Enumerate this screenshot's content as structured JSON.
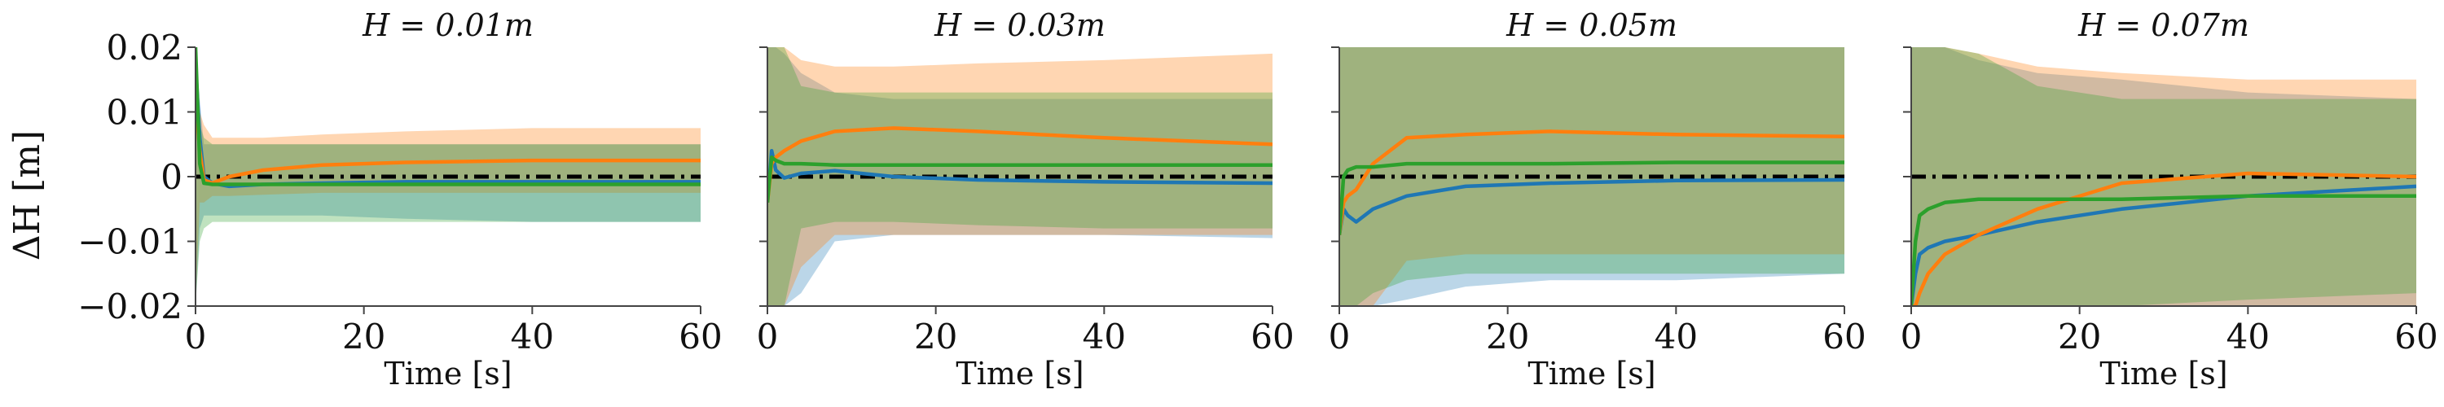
{
  "figure": {
    "ylabel": "ΔH [m]",
    "xlabel": "Time [s]",
    "yticks": [
      "0.02",
      "0.01",
      "0",
      "−0.01",
      "−0.02"
    ],
    "xticks": [
      "0",
      "20",
      "40",
      "60"
    ]
  },
  "colors": {
    "blue": "#1f77b4",
    "orange": "#ff7f0e",
    "green": "#2ca02c",
    "reference": "#000000"
  },
  "chart_data": [
    {
      "type": "line",
      "title": "H = 0.01m",
      "xlabel": "Time [s]",
      "ylabel": "ΔH [m]",
      "xlim": [
        0,
        60
      ],
      "ylim": [
        -0.02,
        0.02
      ],
      "series": [
        {
          "color": "blue",
          "x": [
            0,
            0.5,
            1,
            2,
            4,
            8,
            15,
            25,
            40,
            60
          ],
          "y": [
            0.017,
            0.006,
            0.0,
            -0.001,
            -0.0015,
            -0.0012,
            -0.001,
            -0.0008,
            -0.0008,
            -0.0008
          ],
          "band_lo": [
            -0.02,
            -0.008,
            -0.006,
            -0.006,
            -0.006,
            -0.006,
            -0.006,
            -0.0065,
            -0.007,
            -0.007
          ],
          "band_hi": [
            0.02,
            0.012,
            0.005,
            0.005,
            0.005,
            0.005,
            0.005,
            0.005,
            0.005,
            0.005
          ]
        },
        {
          "color": "orange",
          "x": [
            0,
            0.5,
            1,
            2,
            4,
            8,
            15,
            25,
            40,
            60
          ],
          "y": [
            0.012,
            0.004,
            -0.0005,
            -0.001,
            0.0,
            0.001,
            0.0018,
            0.0022,
            0.0025,
            0.0025
          ],
          "band_lo": [
            -0.02,
            -0.004,
            -0.004,
            -0.003,
            -0.003,
            -0.0028,
            -0.0025,
            -0.0025,
            -0.0025,
            -0.0025
          ],
          "band_hi": [
            0.02,
            0.01,
            0.008,
            0.006,
            0.006,
            0.006,
            0.0065,
            0.007,
            0.0075,
            0.0075
          ]
        },
        {
          "color": "green",
          "x": [
            0,
            0.5,
            1,
            2,
            4,
            8,
            15,
            25,
            40,
            60
          ],
          "y": [
            0.02,
            0.002,
            -0.001,
            -0.0012,
            -0.0012,
            -0.0012,
            -0.0012,
            -0.0012,
            -0.0012,
            -0.0012
          ],
          "band_lo": [
            -0.02,
            -0.01,
            -0.008,
            -0.007,
            -0.007,
            -0.007,
            -0.007,
            -0.007,
            -0.007,
            -0.007
          ],
          "band_hi": [
            0.02,
            0.008,
            0.006,
            0.005,
            0.005,
            0.005,
            0.005,
            0.005,
            0.005,
            0.005
          ]
        }
      ],
      "reference": {
        "y": 0,
        "style": "dash-dot"
      }
    },
    {
      "type": "line",
      "title": "H = 0.03m",
      "xlabel": "Time [s]",
      "ylabel": "ΔH [m]",
      "xlim": [
        0,
        60
      ],
      "ylim": [
        -0.02,
        0.02
      ],
      "series": [
        {
          "color": "blue",
          "x": [
            0,
            0.5,
            1,
            2,
            4,
            8,
            15,
            25,
            40,
            60
          ],
          "y": [
            -0.004,
            0.004,
            0.001,
            -0.0002,
            0.0005,
            0.0009,
            0.0,
            -0.0005,
            -0.0008,
            -0.001
          ],
          "band_lo": [
            -0.02,
            -0.02,
            -0.02,
            -0.02,
            -0.018,
            -0.01,
            -0.009,
            -0.009,
            -0.009,
            -0.0095
          ],
          "band_hi": [
            0.02,
            0.02,
            0.02,
            0.019,
            0.016,
            0.013,
            0.012,
            0.012,
            0.012,
            0.012
          ]
        },
        {
          "color": "orange",
          "x": [
            0,
            0.5,
            1,
            2,
            4,
            8,
            15,
            25,
            40,
            60
          ],
          "y": [
            -0.004,
            0.002,
            0.003,
            0.004,
            0.0055,
            0.007,
            0.0075,
            0.007,
            0.006,
            0.005
          ],
          "band_lo": [
            -0.02,
            -0.02,
            -0.02,
            -0.02,
            -0.014,
            -0.009,
            -0.009,
            -0.009,
            -0.009,
            -0.009
          ],
          "band_hi": [
            0.02,
            0.02,
            0.02,
            0.02,
            0.018,
            0.017,
            0.017,
            0.0175,
            0.018,
            0.019
          ]
        },
        {
          "color": "green",
          "x": [
            0,
            0.5,
            1,
            2,
            4,
            8,
            15,
            25,
            40,
            60
          ],
          "y": [
            -0.004,
            0.003,
            0.0025,
            0.002,
            0.002,
            0.0018,
            0.0018,
            0.0018,
            0.0018,
            0.0018
          ],
          "band_lo": [
            -0.02,
            -0.02,
            -0.02,
            -0.02,
            -0.008,
            -0.007,
            -0.007,
            -0.0075,
            -0.008,
            -0.008
          ],
          "band_hi": [
            0.02,
            0.02,
            0.02,
            0.02,
            0.014,
            0.013,
            0.013,
            0.013,
            0.013,
            0.013
          ]
        }
      ],
      "reference": {
        "y": 0,
        "style": "dash-dot"
      }
    },
    {
      "type": "line",
      "title": "H = 0.05m",
      "xlabel": "Time [s]",
      "ylabel": "ΔH [m]",
      "xlim": [
        0,
        60
      ],
      "ylim": [
        -0.02,
        0.02
      ],
      "series": [
        {
          "color": "blue",
          "x": [
            0,
            0.5,
            1,
            2,
            4,
            8,
            15,
            25,
            40,
            60
          ],
          "y": [
            -0.009,
            -0.005,
            -0.006,
            -0.007,
            -0.005,
            -0.003,
            -0.0015,
            -0.001,
            -0.0006,
            -0.0005
          ],
          "band_lo": [
            -0.02,
            -0.02,
            -0.02,
            -0.02,
            -0.02,
            -0.019,
            -0.017,
            -0.016,
            -0.016,
            -0.015
          ],
          "band_hi": [
            0.02,
            0.02,
            0.02,
            0.02,
            0.02,
            0.02,
            0.02,
            0.02,
            0.02,
            0.02
          ]
        },
        {
          "color": "orange",
          "x": [
            0,
            0.5,
            1,
            2,
            4,
            8,
            15,
            25,
            40,
            60
          ],
          "y": [
            -0.009,
            -0.004,
            -0.003,
            -0.002,
            0.002,
            0.006,
            0.0065,
            0.007,
            0.0065,
            0.0062
          ],
          "band_lo": [
            -0.02,
            -0.02,
            -0.02,
            -0.02,
            -0.02,
            -0.013,
            -0.012,
            -0.012,
            -0.012,
            -0.012
          ],
          "band_hi": [
            0.02,
            0.02,
            0.02,
            0.02,
            0.02,
            0.02,
            0.02,
            0.02,
            0.02,
            0.02
          ]
        },
        {
          "color": "green",
          "x": [
            0,
            0.5,
            1,
            2,
            4,
            8,
            15,
            25,
            40,
            60
          ],
          "y": [
            -0.009,
            0.0,
            0.001,
            0.0015,
            0.0015,
            0.002,
            0.002,
            0.002,
            0.0022,
            0.0022
          ],
          "band_lo": [
            -0.02,
            -0.02,
            -0.02,
            -0.02,
            -0.018,
            -0.016,
            -0.015,
            -0.015,
            -0.015,
            -0.015
          ],
          "band_hi": [
            0.02,
            0.02,
            0.02,
            0.02,
            0.02,
            0.02,
            0.02,
            0.02,
            0.02,
            0.02
          ]
        }
      ],
      "reference": {
        "y": 0,
        "style": "dash-dot"
      }
    },
    {
      "type": "line",
      "title": "H = 0.07m",
      "xlabel": "Time [s]",
      "ylabel": "ΔH [m]",
      "xlim": [
        0,
        60
      ],
      "ylim": [
        -0.02,
        0.02
      ],
      "series": [
        {
          "color": "blue",
          "x": [
            0,
            0.5,
            1,
            2,
            4,
            8,
            15,
            25,
            40,
            60
          ],
          "y": [
            -0.02,
            -0.015,
            -0.012,
            -0.011,
            -0.01,
            -0.009,
            -0.007,
            -0.005,
            -0.003,
            -0.0015
          ],
          "band_lo": [
            -0.02,
            -0.02,
            -0.02,
            -0.02,
            -0.02,
            -0.02,
            -0.02,
            -0.02,
            -0.02,
            -0.02
          ],
          "band_hi": [
            0.02,
            0.02,
            0.02,
            0.02,
            0.02,
            0.018,
            0.016,
            0.015,
            0.013,
            0.012
          ]
        },
        {
          "color": "orange",
          "x": [
            0,
            0.5,
            1,
            2,
            4,
            8,
            15,
            25,
            40,
            60
          ],
          "y": [
            -0.02,
            -0.02,
            -0.018,
            -0.015,
            -0.012,
            -0.009,
            -0.005,
            -0.001,
            0.0005,
            0.0
          ],
          "band_lo": [
            -0.02,
            -0.02,
            -0.02,
            -0.02,
            -0.02,
            -0.02,
            -0.02,
            -0.02,
            -0.02,
            -0.02
          ],
          "band_hi": [
            0.02,
            0.02,
            0.02,
            0.02,
            0.02,
            0.019,
            0.017,
            0.016,
            0.015,
            0.015
          ]
        },
        {
          "color": "green",
          "x": [
            0,
            0.5,
            1,
            2,
            4,
            8,
            15,
            25,
            40,
            60
          ],
          "y": [
            -0.02,
            -0.01,
            -0.006,
            -0.005,
            -0.004,
            -0.0035,
            -0.0035,
            -0.0035,
            -0.003,
            -0.003
          ],
          "band_lo": [
            -0.02,
            -0.02,
            -0.02,
            -0.02,
            -0.02,
            -0.02,
            -0.02,
            -0.02,
            -0.019,
            -0.018
          ],
          "band_hi": [
            0.02,
            0.02,
            0.02,
            0.02,
            0.02,
            0.019,
            0.014,
            0.012,
            0.012,
            0.012
          ]
        }
      ],
      "reference": {
        "y": 0,
        "style": "dash-dot"
      }
    }
  ]
}
